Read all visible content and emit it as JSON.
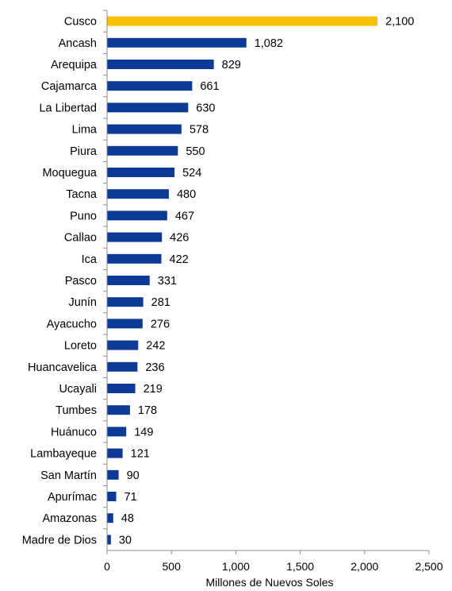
{
  "chart_data": {
    "type": "bar",
    "orientation": "horizontal",
    "categories": [
      "Cusco",
      "Ancash",
      "Arequipa",
      "Cajamarca",
      "La Libertad",
      "Lima",
      "Piura",
      "Moquegua",
      "Tacna",
      "Puno",
      "Callao",
      "Ica",
      "Pasco",
      "Junín",
      "Ayacucho",
      "Loreto",
      "Huancavelica",
      "Ucayali",
      "Tumbes",
      "Huánuco",
      "Lambayeque",
      "San Martín",
      "Apurímac",
      "Amazonas",
      "Madre de Dios"
    ],
    "values": [
      2100,
      1082,
      829,
      661,
      630,
      578,
      550,
      524,
      480,
      467,
      426,
      422,
      331,
      281,
      276,
      242,
      236,
      219,
      178,
      149,
      121,
      90,
      71,
      48,
      30
    ],
    "value_labels": [
      "2,100",
      "1,082",
      "829",
      "661",
      "630",
      "578",
      "550",
      "524",
      "480",
      "467",
      "426",
      "422",
      "331",
      "281",
      "276",
      "242",
      "236",
      "219",
      "178",
      "149",
      "121",
      "90",
      "71",
      "48",
      "30"
    ],
    "title": "",
    "xlabel": "Millones de Nuevos Soles",
    "ylabel": "",
    "xlim": [
      0,
      2500
    ],
    "xticks": [
      0,
      500,
      1000,
      1500,
      2000,
      2500
    ],
    "xtick_labels": [
      "0",
      "500",
      "1,000",
      "1,500",
      "2,000",
      "2,500"
    ],
    "grid": false,
    "colors": {
      "default_bar": "#0c3a96",
      "highlight_bar": "#f6c100",
      "axis": "#8c8c8c"
    },
    "highlight_category": "Cusco"
  }
}
